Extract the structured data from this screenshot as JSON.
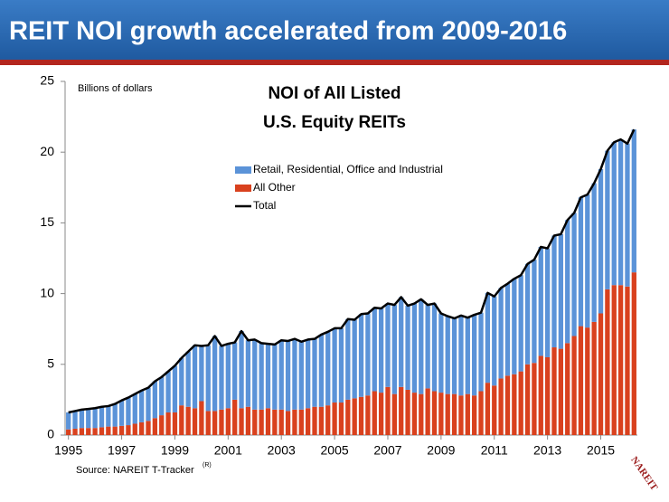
{
  "header": {
    "title": "REIT NOI growth accelerated from 2009-2016"
  },
  "chart_data": {
    "type": "stacked_bar_line",
    "title": [
      "NOI of All Listed",
      "U.S. Equity REITs"
    ],
    "ylabel": "Billions of dollars",
    "categories": [
      "1995",
      null,
      null,
      null,
      null,
      null,
      null,
      null,
      "1997",
      null,
      null,
      null,
      null,
      null,
      null,
      null,
      "1999",
      null,
      null,
      null,
      null,
      null,
      null,
      null,
      "2001",
      null,
      null,
      null,
      null,
      null,
      null,
      null,
      "2003",
      null,
      null,
      null,
      null,
      null,
      null,
      null,
      "2005",
      null,
      null,
      null,
      null,
      null,
      null,
      null,
      "2007",
      null,
      null,
      null,
      null,
      null,
      null,
      null,
      "2009",
      null,
      null,
      null,
      null,
      null,
      null,
      null,
      "2011",
      null,
      null,
      null,
      null,
      null,
      null,
      null,
      "2013",
      null,
      null,
      null,
      null,
      null,
      null,
      null,
      "2015",
      null,
      null,
      null,
      null,
      null
    ],
    "series": [
      {
        "name": "All Other",
        "color": "#d9411e",
        "kind": "bar",
        "values": [
          0.4,
          0.45,
          0.5,
          0.5,
          0.5,
          0.55,
          0.6,
          0.6,
          0.65,
          0.7,
          0.8,
          0.9,
          1.0,
          1.2,
          1.4,
          1.6,
          1.6,
          2.1,
          2.0,
          1.9,
          2.4,
          1.7,
          1.7,
          1.8,
          1.9,
          2.5,
          1.9,
          2.0,
          1.8,
          1.8,
          1.9,
          1.8,
          1.8,
          1.7,
          1.8,
          1.8,
          1.9,
          2.0,
          2.0,
          2.1,
          2.3,
          2.3,
          2.5,
          2.6,
          2.7,
          2.8,
          3.1,
          3.0,
          3.4,
          2.9,
          3.4,
          3.2,
          3.0,
          2.9,
          3.3,
          3.1,
          3.0,
          2.9,
          2.9,
          2.8,
          2.9,
          2.8,
          3.1,
          3.7,
          3.5,
          4.0,
          4.2,
          4.3,
          4.5,
          5.0,
          5.1,
          5.6,
          5.5,
          6.2,
          6.1,
          6.5,
          7.0,
          7.7,
          7.6,
          8.0,
          8.6,
          10.3,
          10.6,
          10.6,
          10.5,
          11.5
        ]
      },
      {
        "name": "Retail, Residential, Office and Industrial",
        "color": "#5b93d8",
        "kind": "bar",
        "values": [
          1.2,
          1.25,
          1.3,
          1.35,
          1.4,
          1.45,
          1.45,
          1.6,
          1.8,
          1.95,
          2.1,
          2.25,
          2.35,
          2.6,
          2.7,
          2.9,
          3.3,
          3.35,
          3.9,
          4.45,
          3.9,
          4.65,
          5.3,
          4.5,
          4.55,
          4.05,
          5.45,
          4.7,
          4.95,
          4.7,
          4.55,
          4.6,
          4.9,
          4.95,
          5.0,
          4.8,
          4.85,
          4.8,
          5.1,
          5.2,
          5.25,
          5.25,
          5.7,
          5.55,
          5.85,
          5.8,
          5.9,
          5.95,
          5.9,
          6.3,
          6.35,
          5.95,
          6.3,
          6.7,
          5.9,
          6.2,
          5.6,
          5.5,
          5.35,
          5.65,
          5.4,
          5.7,
          5.55,
          6.35,
          6.3,
          6.4,
          6.5,
          6.75,
          6.8,
          7.1,
          7.3,
          7.7,
          7.7,
          7.9,
          8.1,
          8.7,
          8.7,
          9.1,
          9.4,
          9.8,
          10.2,
          9.8,
          10.1,
          10.3,
          10.1,
          10.1
        ]
      },
      {
        "name": "Total",
        "color": "#000000",
        "kind": "line",
        "values": [
          1.6,
          1.7,
          1.8,
          1.85,
          1.9,
          2.0,
          2.05,
          2.2,
          2.45,
          2.65,
          2.9,
          3.15,
          3.35,
          3.8,
          4.1,
          4.5,
          4.9,
          5.45,
          5.9,
          6.35,
          6.3,
          6.35,
          7.0,
          6.3,
          6.45,
          6.55,
          7.35,
          6.7,
          6.75,
          6.5,
          6.45,
          6.4,
          6.7,
          6.65,
          6.8,
          6.6,
          6.75,
          6.8,
          7.1,
          7.3,
          7.55,
          7.55,
          8.2,
          8.15,
          8.55,
          8.6,
          9.0,
          8.95,
          9.3,
          9.2,
          9.75,
          9.15,
          9.3,
          9.6,
          9.2,
          9.3,
          8.6,
          8.4,
          8.25,
          8.45,
          8.3,
          8.5,
          8.65,
          10.05,
          9.8,
          10.4,
          10.7,
          11.05,
          11.3,
          12.1,
          12.4,
          13.3,
          13.2,
          14.1,
          14.2,
          15.2,
          15.7,
          16.8,
          17.0,
          17.8,
          18.8,
          20.1,
          20.7,
          20.9,
          20.6,
          21.6
        ]
      }
    ],
    "legend_order": [
      1,
      0,
      2
    ],
    "ylim": [
      0,
      25
    ],
    "yticks": [
      0,
      5,
      10,
      15,
      20,
      25
    ],
    "grid": false,
    "legend": "upper center"
  },
  "footer": {
    "source": "Source: NAREIT T-Tracker",
    "source_mark": "(R)",
    "logo": "NAREIT"
  }
}
